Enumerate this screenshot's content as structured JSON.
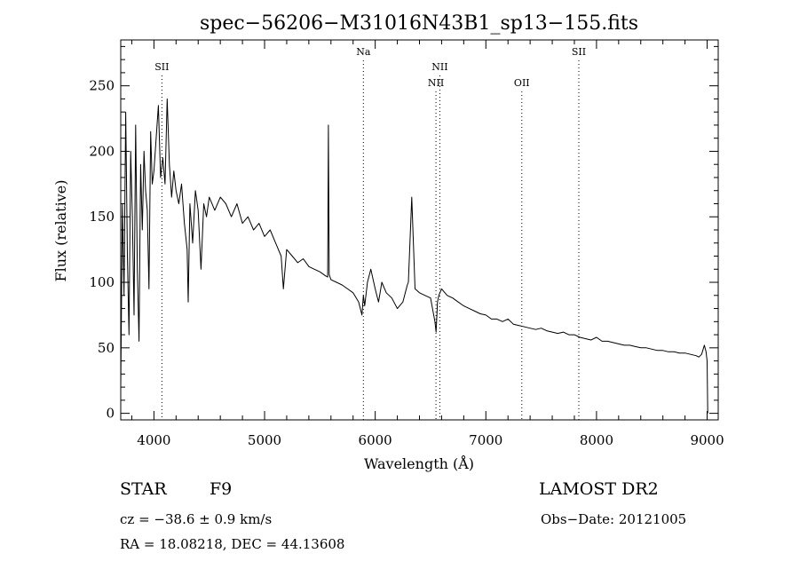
{
  "chart_data": {
    "type": "line",
    "title": "spec−56206−M31016N43B1_sp13−155.fits",
    "xlabel": "Wavelength (Å)",
    "ylabel": "Flux (relative)",
    "xlim": [
      3700,
      9100
    ],
    "ylim": [
      -5,
      285
    ],
    "x_ticks": [
      4000,
      5000,
      6000,
      7000,
      8000,
      9000
    ],
    "y_ticks": [
      0,
      50,
      100,
      150,
      200,
      250
    ],
    "grid": false,
    "line_color": "#000000",
    "series": [
      {
        "x": [
          3700,
          3715,
          3730,
          3745,
          3760,
          3775,
          3790,
          3805,
          3820,
          3835,
          3850,
          3865,
          3880,
          3895,
          3910,
          3925,
          3940,
          3955,
          3970,
          3985,
          4000,
          4020,
          4040,
          4060,
          4080,
          4100,
          4120,
          4140,
          4160,
          4180,
          4200,
          4225,
          4250,
          4275,
          4300,
          4310,
          4325,
          4350,
          4375,
          4400,
          4425,
          4450,
          4475,
          4500,
          4550,
          4600,
          4650,
          4700,
          4750,
          4800,
          4850,
          4900,
          4950,
          5000,
          5050,
          5100,
          5150,
          5170,
          5200,
          5250,
          5300,
          5350,
          5400,
          5450,
          5500,
          5550,
          5570,
          5577,
          5584,
          5600,
          5650,
          5700,
          5750,
          5800,
          5850,
          5880,
          5893,
          5905,
          5930,
          5960,
          6000,
          6030,
          6060,
          6100,
          6150,
          6200,
          6250,
          6290,
          6300,
          6330,
          6360,
          6400,
          6450,
          6500,
          6540,
          6550,
          6563,
          6575,
          6600,
          6650,
          6700,
          6750,
          6800,
          6850,
          6900,
          6950,
          7000,
          7050,
          7100,
          7150,
          7200,
          7250,
          7300,
          7350,
          7400,
          7450,
          7500,
          7550,
          7600,
          7650,
          7700,
          7750,
          7800,
          7850,
          7900,
          7950,
          8000,
          8050,
          8100,
          8150,
          8200,
          8250,
          8300,
          8350,
          8400,
          8450,
          8500,
          8550,
          8600,
          8650,
          8700,
          8750,
          8800,
          8850,
          8900,
          8925,
          8950,
          8975,
          8990,
          9000,
          9005
        ],
        "y": [
          20,
          160,
          90,
          230,
          120,
          60,
          200,
          150,
          75,
          220,
          110,
          55,
          190,
          140,
          200,
          170,
          155,
          95,
          215,
          175,
          185,
          210,
          235,
          180,
          195,
          175,
          240,
          190,
          165,
          185,
          170,
          160,
          175,
          145,
          125,
          85,
          160,
          130,
          170,
          155,
          110,
          160,
          150,
          165,
          155,
          165,
          160,
          150,
          160,
          145,
          150,
          140,
          145,
          135,
          140,
          130,
          120,
          95,
          125,
          120,
          115,
          118,
          112,
          110,
          108,
          105,
          104,
          220,
          106,
          102,
          100,
          98,
          95,
          92,
          85,
          75,
          90,
          82,
          100,
          110,
          95,
          85,
          100,
          92,
          88,
          80,
          85,
          98,
          100,
          165,
          95,
          92,
          90,
          88,
          70,
          62,
          85,
          90,
          95,
          90,
          88,
          85,
          82,
          80,
          78,
          76,
          75,
          72,
          72,
          70,
          72,
          68,
          67,
          66,
          65,
          64,
          65,
          63,
          62,
          61,
          62,
          60,
          60,
          58,
          57,
          56,
          58,
          55,
          55,
          54,
          53,
          52,
          52,
          51,
          50,
          50,
          49,
          48,
          48,
          47,
          47,
          46,
          46,
          45,
          44,
          43,
          45,
          52,
          47,
          40,
          0
        ]
      }
    ],
    "annotations": [
      {
        "label": "SII",
        "x": 4072,
        "row": "upper"
      },
      {
        "label": "Na",
        "x": 5893,
        "row": "top"
      },
      {
        "label": "NII",
        "x": 6549,
        "row": "lower"
      },
      {
        "label": "NII",
        "x": 6584,
        "row": "upper"
      },
      {
        "label": "OII",
        "x": 7325,
        "row": "lower"
      },
      {
        "label": "SII",
        "x": 7840,
        "row": "top"
      }
    ]
  },
  "info": {
    "object_class": "STAR",
    "subclass": "F9",
    "survey": "LAMOST DR2",
    "redshift": "cz = −38.6 ± 0.9 km/s",
    "obs_date": "Obs−Date: 20121005",
    "coords": "RA =  18.08218, DEC =  44.13608"
  }
}
